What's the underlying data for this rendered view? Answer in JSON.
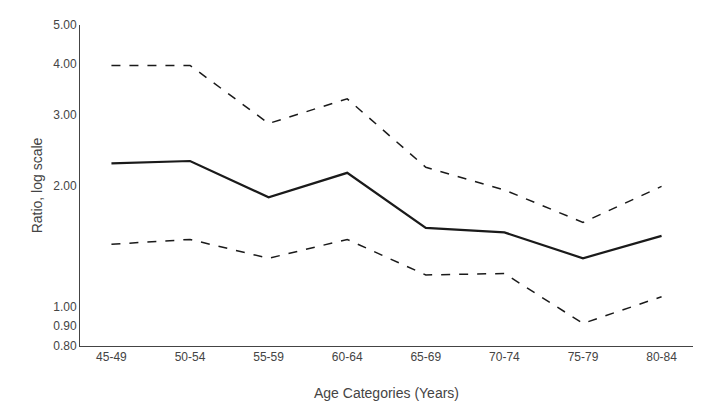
{
  "chart_data": {
    "type": "line",
    "xlabel": "Age Categories (Years)",
    "ylabel": "Ratio, log scale",
    "categories": [
      "45-49",
      "50-54",
      "55-59",
      "60-64",
      "65-69",
      "70-74",
      "75-79",
      "80-84"
    ],
    "series": [
      {
        "color": "#1a1a1a",
        "line_style": "dashed",
        "values": [
          3.97,
          3.97,
          2.85,
          3.28,
          2.22,
          1.95,
          1.62,
          1.99
        ]
      },
      {
        "color": "#1a1a1a",
        "line_style": "solid",
        "values": [
          2.27,
          2.3,
          1.87,
          2.15,
          1.57,
          1.53,
          1.32,
          1.5
        ]
      },
      {
        "color": "#1a1a1a",
        "line_style": "dashed",
        "values": [
          1.43,
          1.47,
          1.32,
          1.47,
          1.2,
          1.21,
          0.91,
          1.06
        ]
      }
    ],
    "log": "y",
    "ylim": [
      0.8,
      5.0
    ],
    "yticks": [
      {
        "value": 0.8,
        "label": "0.80"
      },
      {
        "value": 0.9,
        "label": "0.90"
      },
      {
        "value": 1.0,
        "label": "1.00"
      },
      {
        "value": 2.0,
        "label": "2.00"
      },
      {
        "value": 3.0,
        "label": "3.00"
      },
      {
        "value": 4.0,
        "label": "4.00"
      },
      {
        "value": 5.0,
        "label": "5.00"
      }
    ],
    "grid": false
  }
}
